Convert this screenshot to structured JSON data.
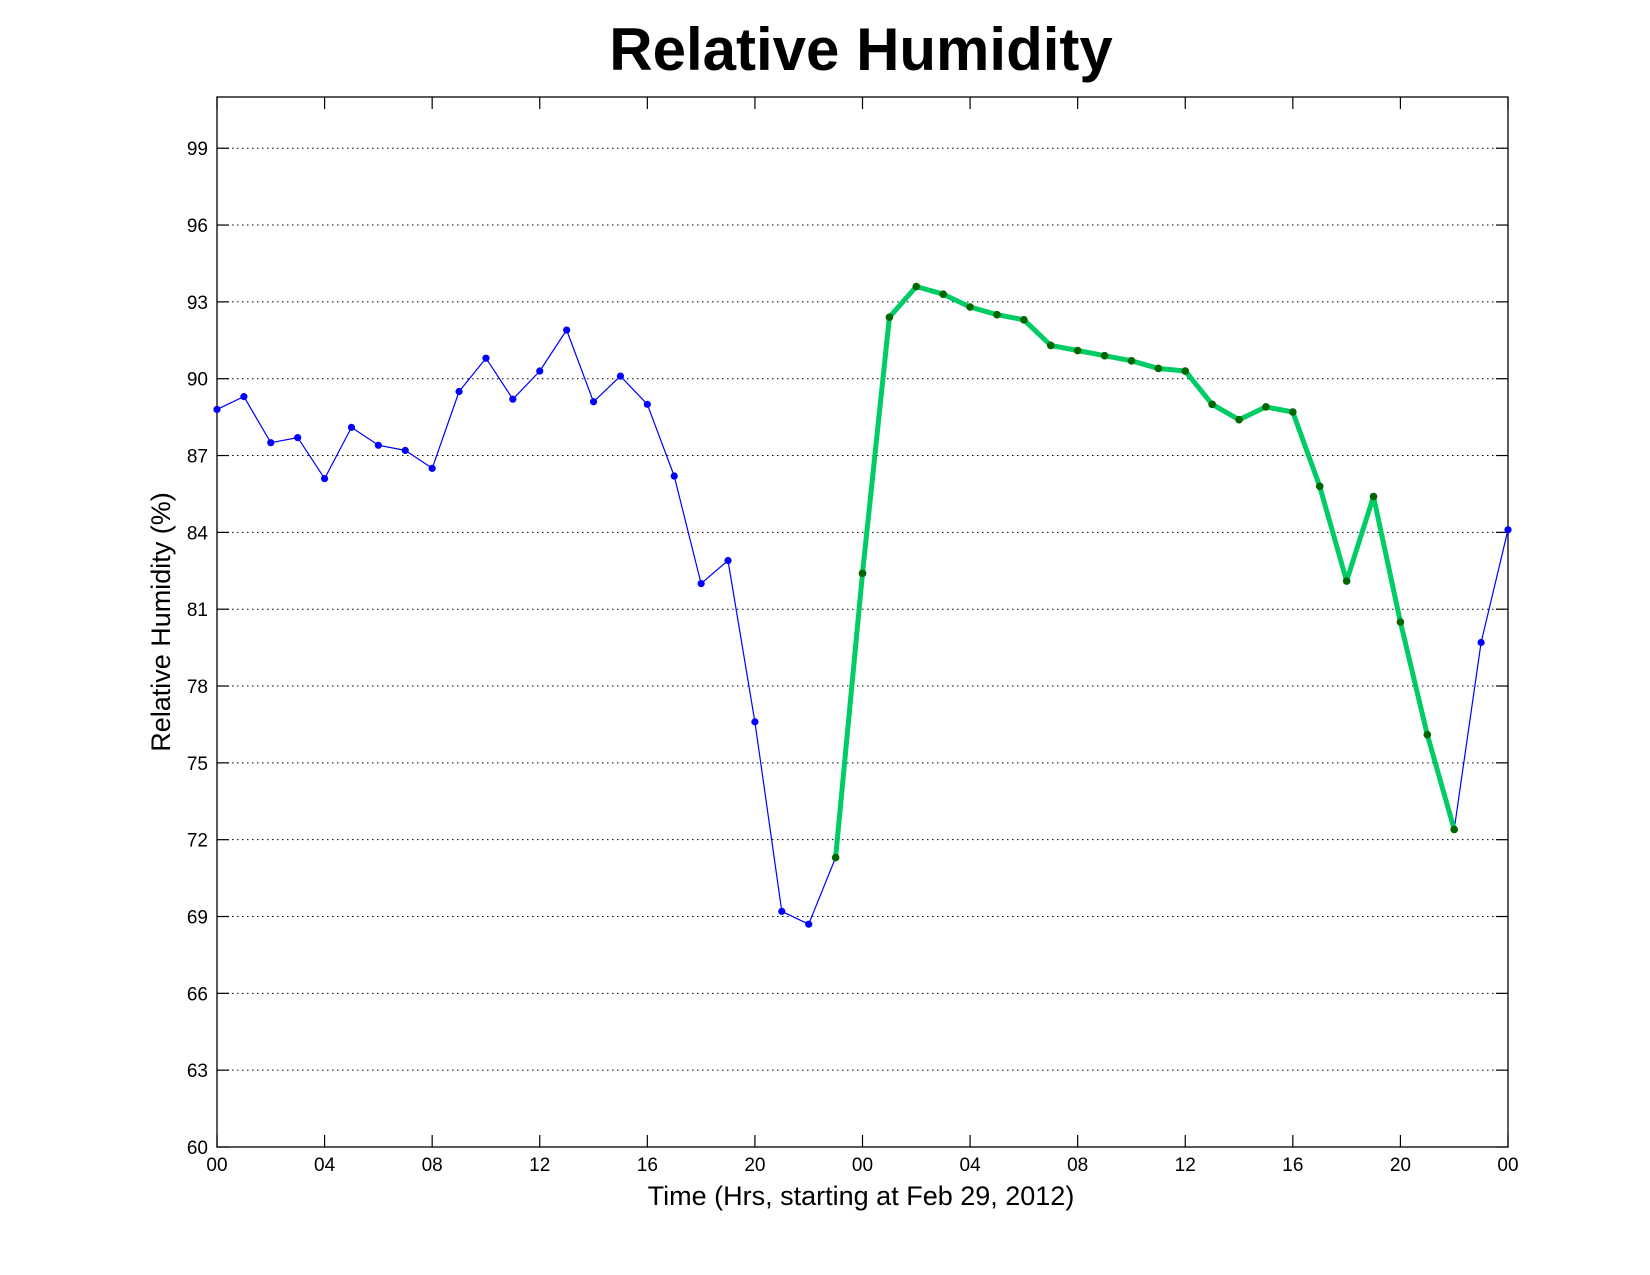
{
  "chart_data": {
    "type": "line",
    "title": "Relative Humidity",
    "xlabel": "Time (Hrs, starting at Feb 29, 2012)",
    "ylabel": "Relative Humidity (%)",
    "xlim": [
      0,
      48
    ],
    "ylim": [
      60,
      101
    ],
    "grid": "horizontal dotted",
    "x_ticks": [
      0,
      4,
      8,
      12,
      16,
      20,
      24,
      28,
      32,
      36,
      40,
      44,
      48
    ],
    "x_tick_labels": [
      "00",
      "04",
      "08",
      "12",
      "16",
      "20",
      "00",
      "04",
      "08",
      "12",
      "16",
      "20",
      "00"
    ],
    "y_ticks": [
      60,
      63,
      66,
      69,
      72,
      75,
      78,
      81,
      84,
      87,
      90,
      93,
      96,
      99
    ],
    "y_tick_labels": [
      "60",
      "63",
      "66",
      "69",
      "72",
      "75",
      "78",
      "81",
      "84",
      "87",
      "90",
      "93",
      "96",
      "99"
    ],
    "series": [
      {
        "color": "#0000ff",
        "style": "thin line with dot markers",
        "x": [
          0,
          1,
          2,
          3,
          4,
          5,
          6,
          7,
          8,
          9,
          10,
          11,
          12,
          13,
          14,
          15,
          16,
          17,
          18,
          19,
          20,
          21,
          22,
          23,
          24,
          25,
          26,
          27,
          28,
          29,
          30,
          31,
          32,
          33,
          34,
          35,
          36,
          37,
          38,
          39,
          40,
          41,
          42,
          43,
          44,
          45,
          46,
          47,
          48
        ],
        "values": [
          88.8,
          89.3,
          87.5,
          87.7,
          86.1,
          88.1,
          87.4,
          87.2,
          86.5,
          89.5,
          90.8,
          89.2,
          90.3,
          91.9,
          89.1,
          90.1,
          89.0,
          86.2,
          82.0,
          82.9,
          76.6,
          69.2,
          68.7,
          71.3,
          82.4,
          92.4,
          93.6,
          93.3,
          92.8,
          92.5,
          92.3,
          91.3,
          91.1,
          90.9,
          90.7,
          90.4,
          90.3,
          89.0,
          88.4,
          88.9,
          88.7,
          85.8,
          82.1,
          85.4,
          80.5,
          76.1,
          72.4,
          79.7,
          84.1
        ]
      },
      {
        "color": "#00cc66",
        "marker_color": "#006600",
        "style": "thick highlighted segment with dark green dot markers",
        "x": [
          23,
          24,
          25,
          26,
          27,
          28,
          29,
          30,
          31,
          32,
          33,
          34,
          35,
          36,
          37,
          38,
          39,
          40,
          41,
          42,
          43,
          44,
          45,
          46
        ],
        "values": [
          71.3,
          82.4,
          92.4,
          93.6,
          93.3,
          92.8,
          92.5,
          92.3,
          91.3,
          91.1,
          90.9,
          90.7,
          90.4,
          90.3,
          89.0,
          88.4,
          88.9,
          88.7,
          85.8,
          82.1,
          85.4,
          80.5,
          76.1,
          72.4
        ]
      }
    ]
  }
}
